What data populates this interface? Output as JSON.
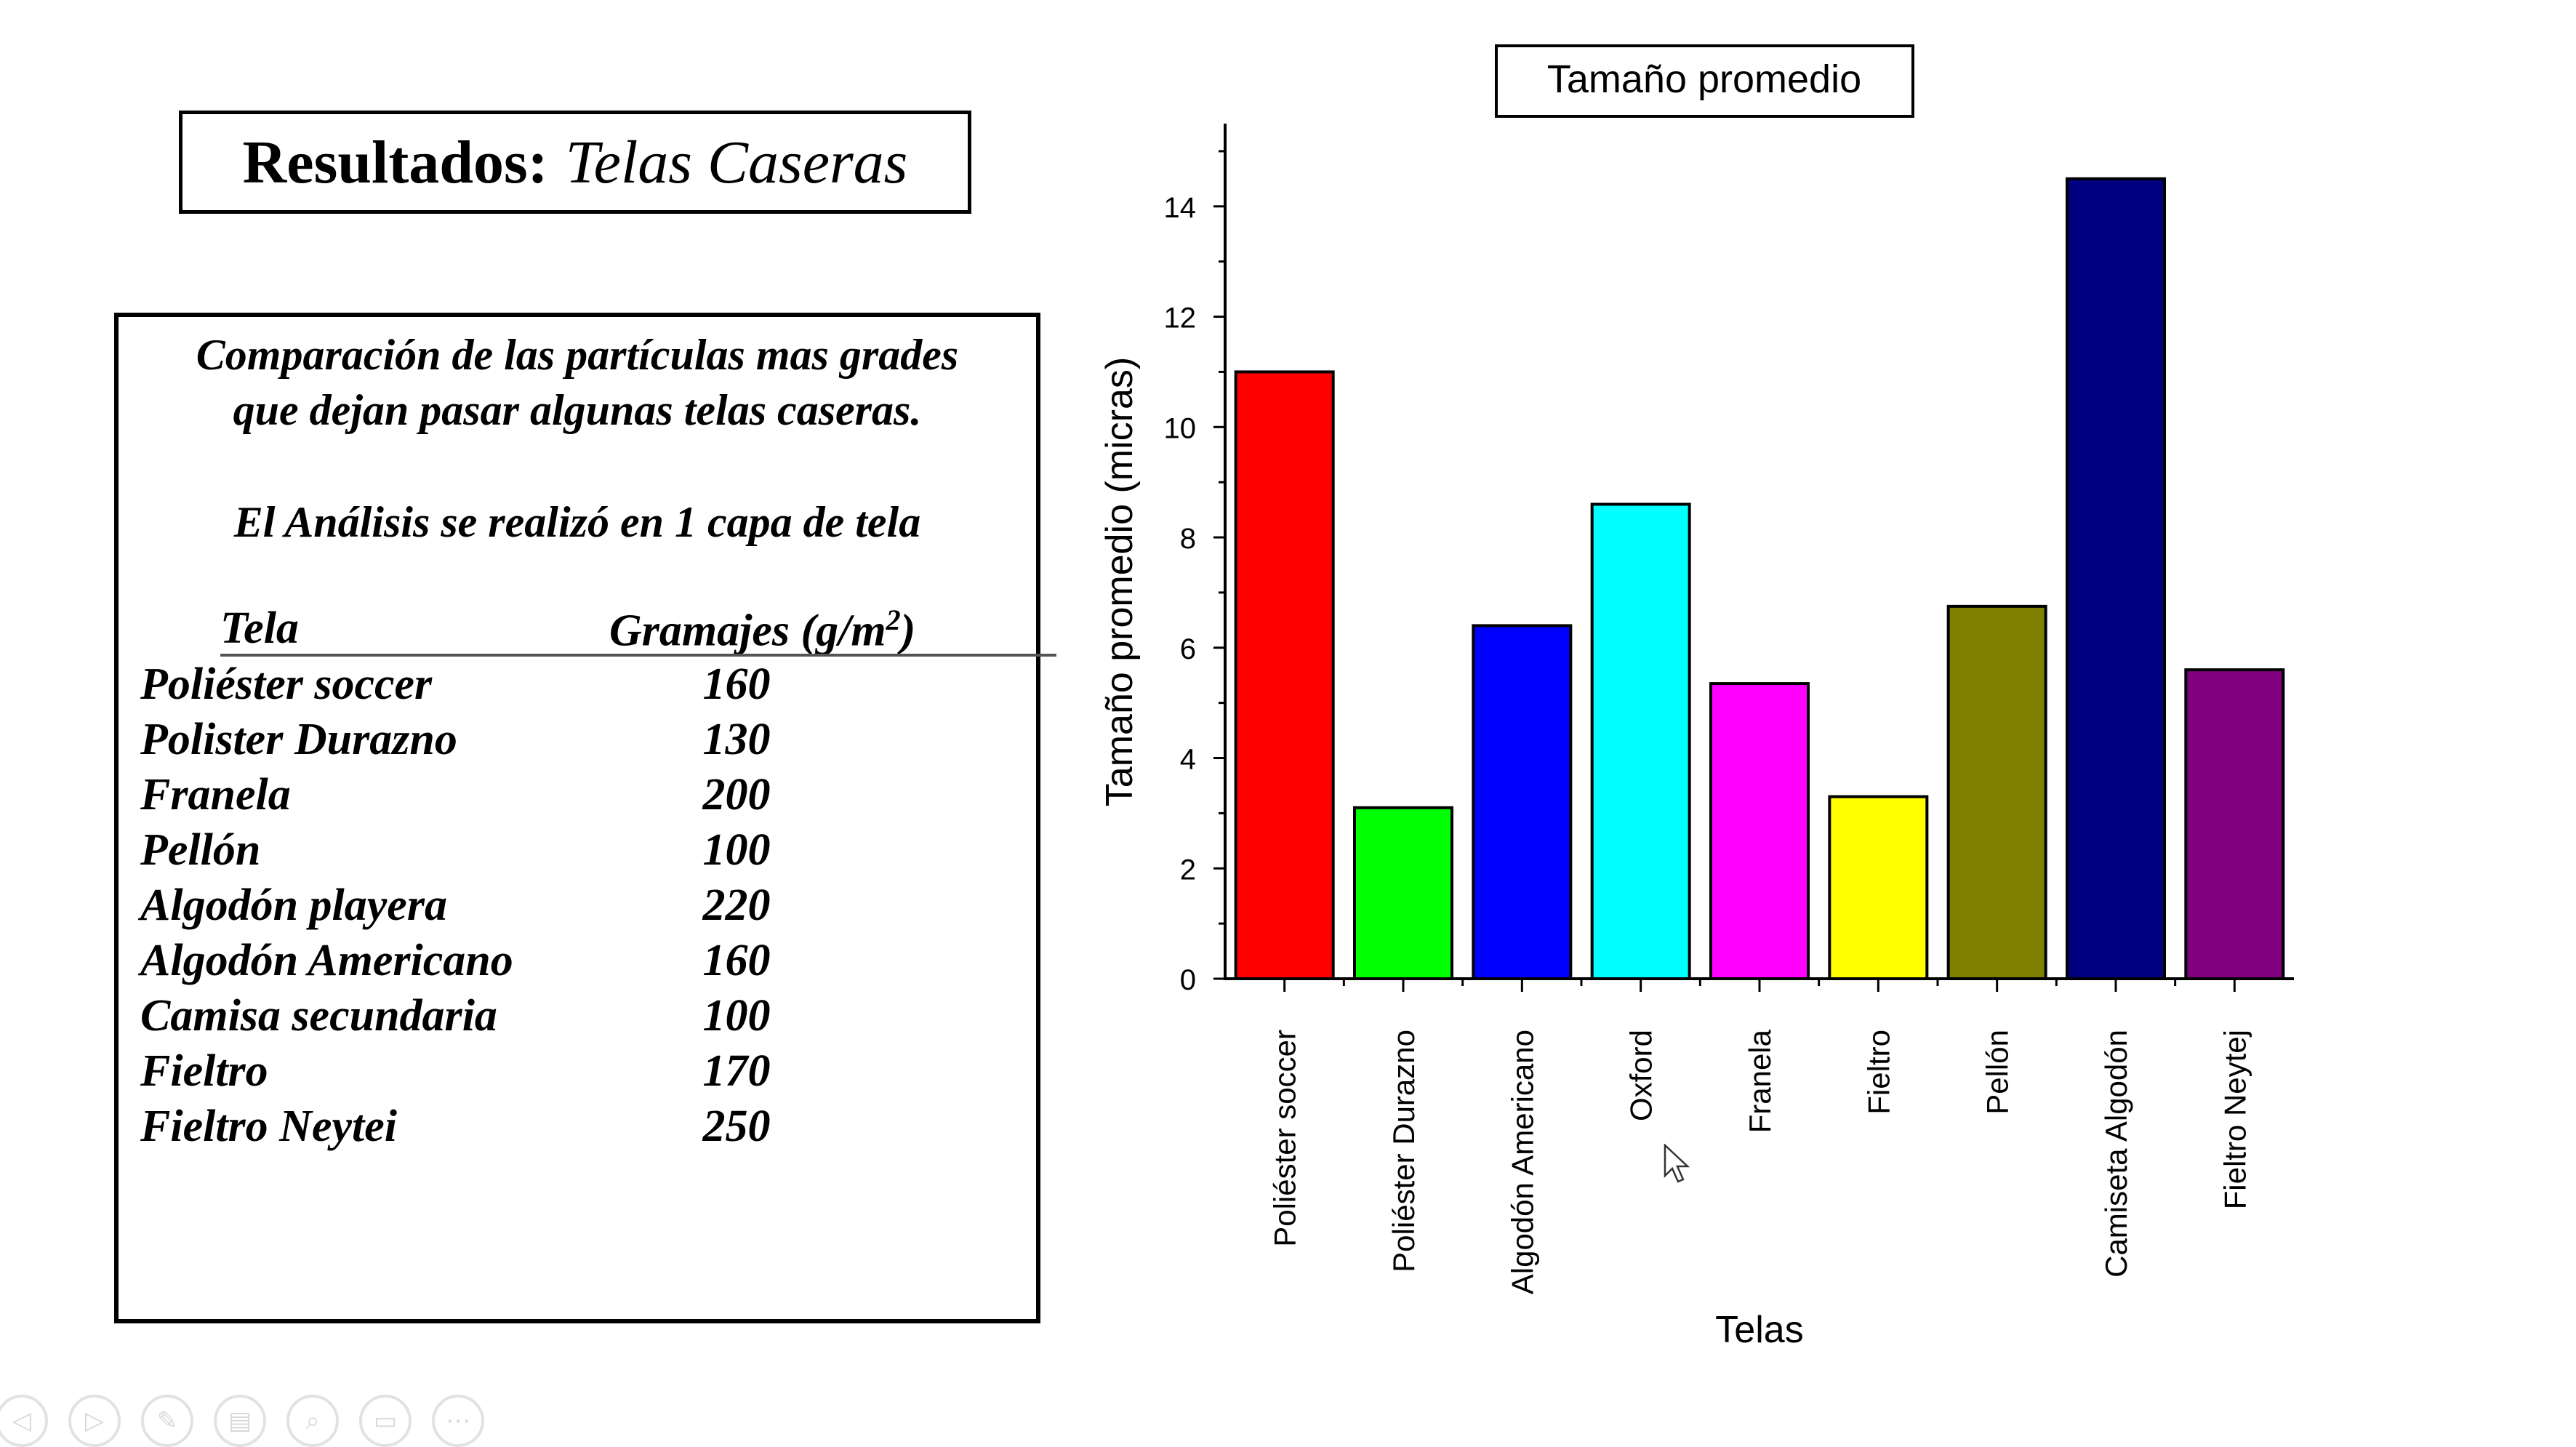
{
  "slide": {
    "title_bold": "Resultados:",
    "title_italic": "Telas Caseras",
    "desc_line1": "Comparación de las partículas mas grades",
    "desc_line2": "que dejan pasar algunas telas caseras.",
    "desc_line3": "El Análisis se realizó en 1 capa de tela",
    "table_header_fabric": "Tela",
    "table_header_weight": "Gramajes (g/m",
    "table_header_weight_sup": "2",
    "table_header_weight_close": ")",
    "rows": [
      {
        "name": "Poliéster soccer",
        "value": "160"
      },
      {
        "name": "Polister Durazno",
        "value": "130"
      },
      {
        "name": "Franela",
        "value": "200"
      },
      {
        "name": "Pellón",
        "value": "100"
      },
      {
        "name": "Algodón playera",
        "value": "220"
      },
      {
        "name": "Algodón Americano",
        "value": "160"
      },
      {
        "name": "Camisa secundaria",
        "value": "100"
      },
      {
        "name": "Fieltro",
        "value": "170"
      },
      {
        "name": "Fieltro Neytei",
        "value": "250"
      }
    ]
  },
  "chart_data": {
    "type": "bar",
    "title": "Tamaño promedio",
    "xlabel": "Telas",
    "ylabel": "Tamaño promedio (micras)",
    "ylim": [
      0,
      15.5
    ],
    "yticks": [
      0,
      2,
      4,
      6,
      8,
      10,
      12,
      14
    ],
    "categories": [
      "Poliéster soccer",
      "Poliéster Durazno",
      "Algodón Americano",
      "Oxford",
      "Franela",
      "Fieltro",
      "Pellón",
      "Camiseta Algodón",
      "Fieltro Neytej"
    ],
    "values": [
      11.0,
      3.1,
      6.4,
      8.6,
      5.35,
      3.3,
      6.75,
      14.5,
      5.6
    ],
    "colors": [
      "#ff0000",
      "#00ff00",
      "#0000ff",
      "#00ffff",
      "#ff00ff",
      "#ffff00",
      "#808000",
      "#000080",
      "#800080"
    ],
    "grid": false,
    "legend": "none"
  },
  "controls": {
    "icons": [
      "previous-icon",
      "next-icon",
      "pen-icon",
      "slides-icon",
      "zoom-icon",
      "subtitles-icon",
      "more-icon"
    ],
    "glyphs": [
      "◁",
      "▷",
      "✎",
      "▤",
      "⌕",
      "▭",
      "⋯"
    ]
  }
}
